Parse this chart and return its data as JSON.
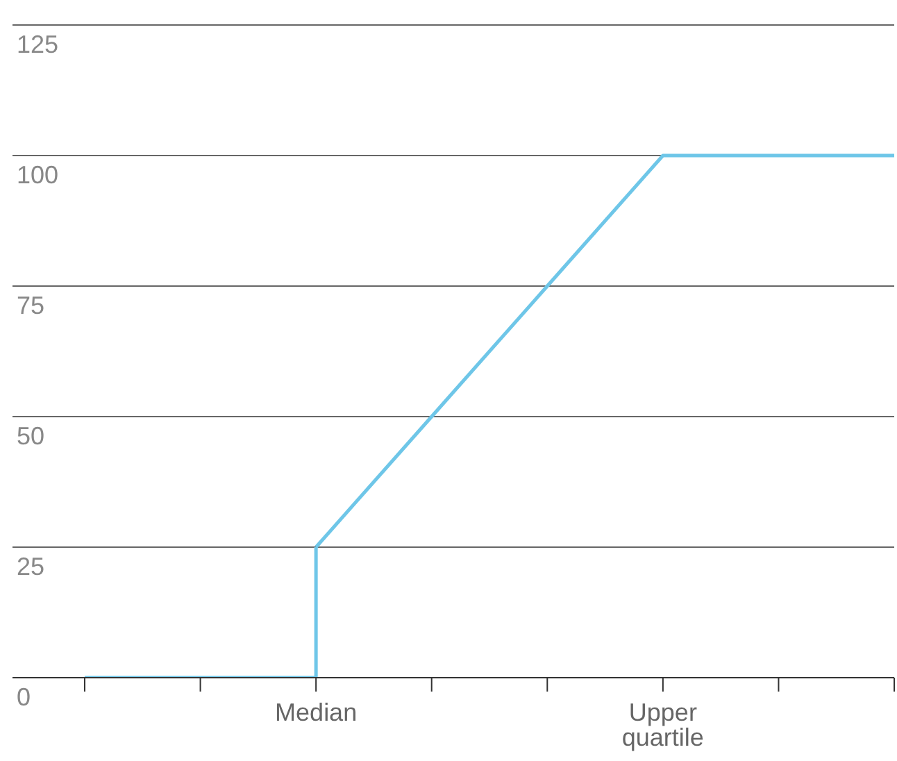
{
  "chart_data": {
    "type": "line",
    "categories": [
      null,
      null,
      "Median",
      null,
      null,
      "Upper quartile",
      null,
      null
    ],
    "series": [
      {
        "type": "step",
        "color": "#6ec6e8",
        "values": [
          0,
          0,
          25,
          null,
          null,
          null,
          null,
          null
        ]
      },
      {
        "color": "#6ec6e8",
        "values": [
          null,
          null,
          25,
          50,
          75,
          100,
          100,
          100
        ]
      }
    ],
    "ylim": [
      0,
      125
    ],
    "yticks": [
      0,
      25,
      50,
      75,
      100,
      125
    ],
    "grid": "y",
    "marker": "none",
    "line_style": "solid"
  }
}
